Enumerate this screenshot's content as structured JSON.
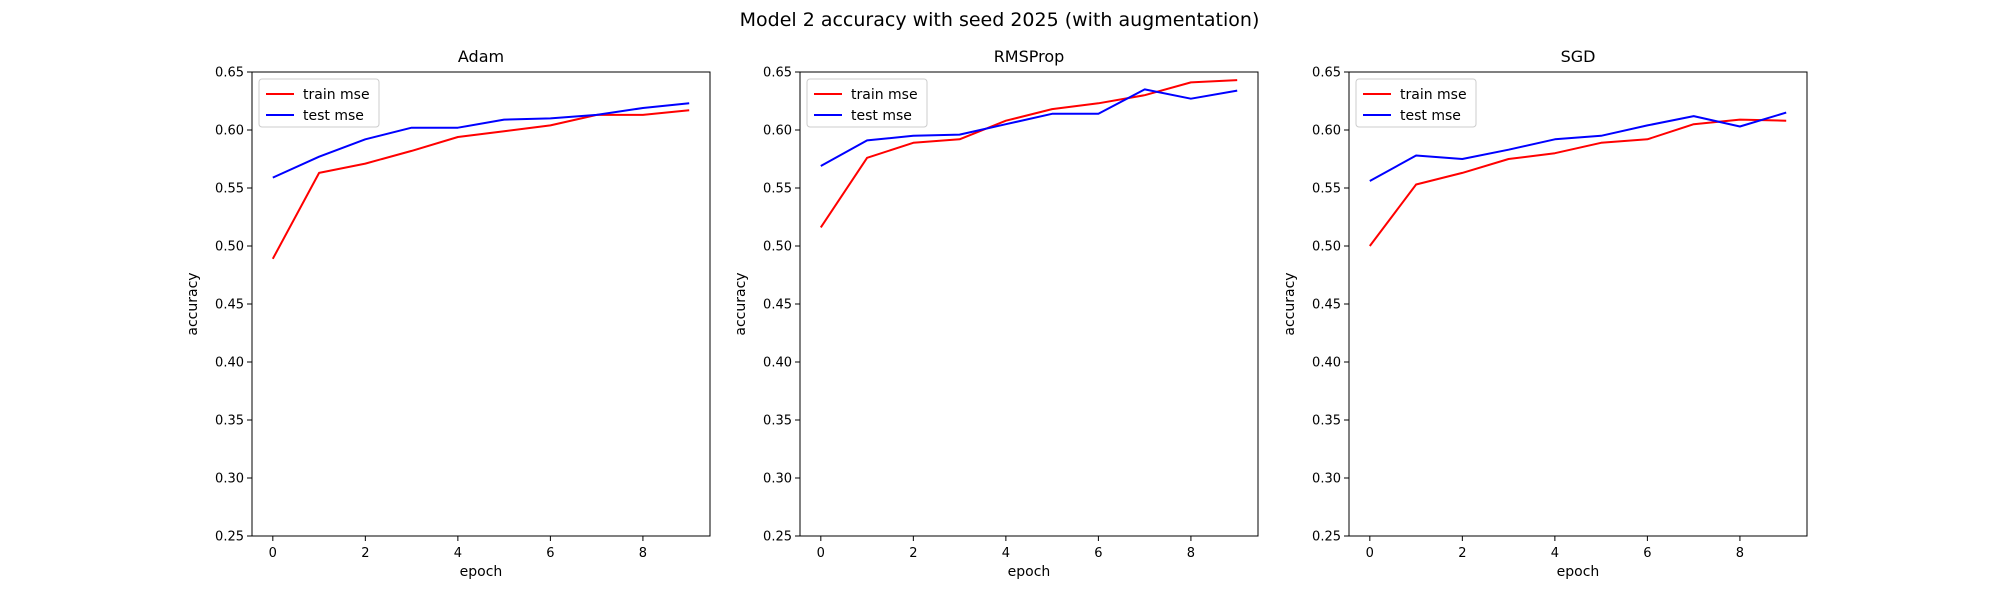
{
  "figure": {
    "title": "Model 2 accuracy with seed 2025 (with augmentation)"
  },
  "chart_data": [
    {
      "type": "line",
      "title": "Adam",
      "xlabel": "epoch",
      "ylabel": "accuracy",
      "xlim": [
        -0.45,
        9.45
      ],
      "ylim": [
        0.25,
        0.65
      ],
      "xticks": [
        0,
        2,
        4,
        6,
        8
      ],
      "yticks": [
        0.25,
        0.3,
        0.35,
        0.4,
        0.45,
        0.5,
        0.55,
        0.6,
        0.65
      ],
      "legend": "upper-left",
      "x": [
        0,
        1,
        2,
        3,
        4,
        5,
        6,
        7,
        8,
        9
      ],
      "series": [
        {
          "name": "train mse",
          "color": "#ff0000",
          "values": [
            0.489,
            0.563,
            0.571,
            0.582,
            0.594,
            0.599,
            0.604,
            0.613,
            0.613,
            0.617
          ]
        },
        {
          "name": "test mse",
          "color": "#0000ff",
          "values": [
            0.559,
            0.577,
            0.592,
            0.602,
            0.602,
            0.609,
            0.61,
            0.613,
            0.619,
            0.623
          ]
        }
      ]
    },
    {
      "type": "line",
      "title": "RMSProp",
      "xlabel": "epoch",
      "ylabel": "accuracy",
      "xlim": [
        -0.45,
        9.45
      ],
      "ylim": [
        0.25,
        0.65
      ],
      "xticks": [
        0,
        2,
        4,
        6,
        8
      ],
      "yticks": [
        0.25,
        0.3,
        0.35,
        0.4,
        0.45,
        0.5,
        0.55,
        0.6,
        0.65
      ],
      "legend": "upper-left",
      "x": [
        0,
        1,
        2,
        3,
        4,
        5,
        6,
        7,
        8,
        9
      ],
      "series": [
        {
          "name": "train mse",
          "color": "#ff0000",
          "values": [
            0.516,
            0.576,
            0.589,
            0.592,
            0.608,
            0.618,
            0.623,
            0.63,
            0.641,
            0.643
          ]
        },
        {
          "name": "test mse",
          "color": "#0000ff",
          "values": [
            0.569,
            0.591,
            0.595,
            0.596,
            0.605,
            0.614,
            0.614,
            0.635,
            0.627,
            0.634
          ]
        }
      ]
    },
    {
      "type": "line",
      "title": "SGD",
      "xlabel": "epoch",
      "ylabel": "accuracy",
      "xlim": [
        -0.45,
        9.45
      ],
      "ylim": [
        0.25,
        0.65
      ],
      "xticks": [
        0,
        2,
        4,
        6,
        8
      ],
      "yticks": [
        0.25,
        0.3,
        0.35,
        0.4,
        0.45,
        0.5,
        0.55,
        0.6,
        0.65
      ],
      "legend": "upper-left",
      "x": [
        0,
        1,
        2,
        3,
        4,
        5,
        6,
        7,
        8,
        9
      ],
      "series": [
        {
          "name": "train mse",
          "color": "#ff0000",
          "values": [
            0.5,
            0.553,
            0.563,
            0.575,
            0.58,
            0.589,
            0.592,
            0.605,
            0.609,
            0.608
          ]
        },
        {
          "name": "test mse",
          "color": "#0000ff",
          "values": [
            0.556,
            0.578,
            0.575,
            0.583,
            0.592,
            0.595,
            0.604,
            0.612,
            0.603,
            0.615
          ]
        }
      ]
    }
  ]
}
